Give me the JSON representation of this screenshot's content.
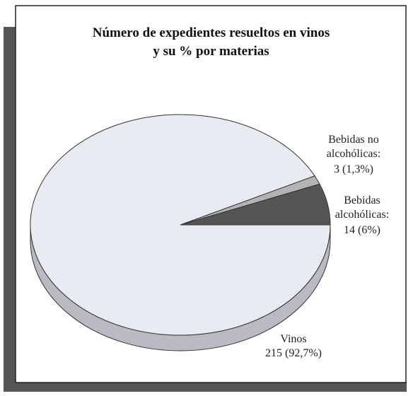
{
  "chart_data": {
    "type": "pie",
    "title": [
      "Número de expedientes resueltos en vinos",
      "y su % por materias"
    ],
    "categories": [
      "Bebidas no alcohólicas:",
      "Bebidas alcohólicas:",
      "Vinos"
    ],
    "values": [
      3,
      14,
      215
    ],
    "value_labels": [
      "3 (1,3%)",
      "14 (6%)",
      "215 (92,7%)"
    ],
    "colors": [
      "#b3b3b3",
      "#555555",
      "#e9ebf3"
    ]
  }
}
